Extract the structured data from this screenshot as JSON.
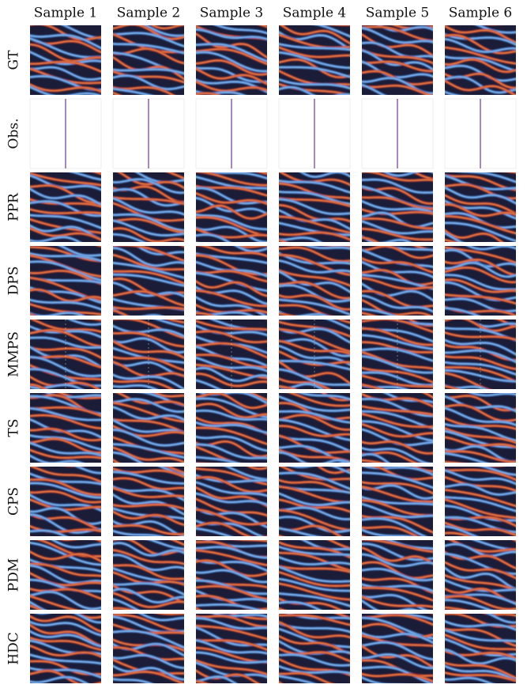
{
  "columns": [
    "Sample 1",
    "Sample 2",
    "Sample 3",
    "Sample 4",
    "Sample 5",
    "Sample 6"
  ],
  "rows": [
    "GT",
    "Obs.",
    "PPR",
    "DPS",
    "MMPS",
    "TS",
    "CPS",
    "PDM",
    "HDC"
  ]
}
